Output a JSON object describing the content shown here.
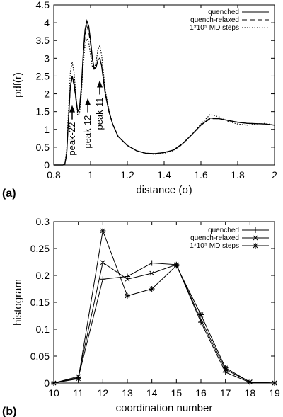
{
  "chart_data": [
    {
      "panel_label": "(a)",
      "type": "line",
      "xlabel": "distance (σ)",
      "ylabel": "pdf(r)",
      "xlim": [
        0.8,
        2.0
      ],
      "ylim": [
        0,
        4.5
      ],
      "xticks": [
        "0.8",
        "1",
        "1.2",
        "1.4",
        "1.6",
        "1.8",
        "2"
      ],
      "yticks": [
        "0",
        "0.5",
        "1",
        "1.5",
        "2",
        "2.5",
        "3",
        "3.5",
        "4",
        "4.5"
      ],
      "legend_position": "top-right",
      "series": [
        {
          "name": "quenched",
          "style": "solid",
          "points": [
            [
              0.8,
              0
            ],
            [
              0.85,
              0
            ],
            [
              0.86,
              0.02
            ],
            [
              0.87,
              0.3
            ],
            [
              0.88,
              1.3
            ],
            [
              0.89,
              2.2
            ],
            [
              0.9,
              2.5
            ],
            [
              0.91,
              2.3
            ],
            [
              0.92,
              1.9
            ],
            [
              0.93,
              1.5
            ],
            [
              0.94,
              1.6
            ],
            [
              0.95,
              2.2
            ],
            [
              0.96,
              3.1
            ],
            [
              0.97,
              3.8
            ],
            [
              0.98,
              4.05
            ],
            [
              0.99,
              3.9
            ],
            [
              1.0,
              3.5
            ],
            [
              1.01,
              3.0
            ],
            [
              1.02,
              2.7
            ],
            [
              1.03,
              2.75
            ],
            [
              1.04,
              2.95
            ],
            [
              1.05,
              3.0
            ],
            [
              1.06,
              2.8
            ],
            [
              1.07,
              2.4
            ],
            [
              1.08,
              2.0
            ],
            [
              1.1,
              1.5
            ],
            [
              1.12,
              1.15
            ],
            [
              1.15,
              0.8
            ],
            [
              1.2,
              0.55
            ],
            [
              1.25,
              0.4
            ],
            [
              1.3,
              0.33
            ],
            [
              1.35,
              0.32
            ],
            [
              1.4,
              0.35
            ],
            [
              1.45,
              0.42
            ],
            [
              1.5,
              0.6
            ],
            [
              1.55,
              0.85
            ],
            [
              1.6,
              1.12
            ],
            [
              1.65,
              1.32
            ],
            [
              1.7,
              1.3
            ],
            [
              1.75,
              1.25
            ],
            [
              1.8,
              1.2
            ],
            [
              1.85,
              1.17
            ],
            [
              1.9,
              1.16
            ],
            [
              1.95,
              1.15
            ],
            [
              2.0,
              1.12
            ]
          ]
        },
        {
          "name": "quench-relaxed",
          "style": "dashed",
          "points": [
            [
              0.8,
              0
            ],
            [
              0.85,
              0
            ],
            [
              0.86,
              0.02
            ],
            [
              0.87,
              0.3
            ],
            [
              0.88,
              1.25
            ],
            [
              0.89,
              2.15
            ],
            [
              0.9,
              2.45
            ],
            [
              0.91,
              2.25
            ],
            [
              0.92,
              1.85
            ],
            [
              0.93,
              1.5
            ],
            [
              0.94,
              1.6
            ],
            [
              0.95,
              2.2
            ],
            [
              0.96,
              3.0
            ],
            [
              0.97,
              3.65
            ],
            [
              0.98,
              3.9
            ],
            [
              0.99,
              3.75
            ],
            [
              1.0,
              3.4
            ],
            [
              1.01,
              2.95
            ],
            [
              1.02,
              2.7
            ],
            [
              1.03,
              2.75
            ],
            [
              1.04,
              2.95
            ],
            [
              1.05,
              3.0
            ],
            [
              1.06,
              2.8
            ],
            [
              1.07,
              2.4
            ],
            [
              1.08,
              2.0
            ],
            [
              1.1,
              1.5
            ],
            [
              1.12,
              1.15
            ],
            [
              1.15,
              0.8
            ],
            [
              1.2,
              0.55
            ],
            [
              1.25,
              0.4
            ],
            [
              1.3,
              0.33
            ],
            [
              1.35,
              0.32
            ],
            [
              1.4,
              0.35
            ],
            [
              1.45,
              0.42
            ],
            [
              1.5,
              0.6
            ],
            [
              1.55,
              0.85
            ],
            [
              1.6,
              1.12
            ],
            [
              1.65,
              1.3
            ],
            [
              1.7,
              1.3
            ],
            [
              1.75,
              1.25
            ],
            [
              1.8,
              1.2
            ],
            [
              1.85,
              1.17
            ],
            [
              1.9,
              1.16
            ],
            [
              1.95,
              1.15
            ],
            [
              2.0,
              1.12
            ]
          ]
        },
        {
          "name": "1*10⁵ MD steps",
          "style": "dotted",
          "points": [
            [
              0.8,
              0
            ],
            [
              0.85,
              0
            ],
            [
              0.86,
              0.03
            ],
            [
              0.87,
              0.4
            ],
            [
              0.88,
              1.6
            ],
            [
              0.89,
              2.6
            ],
            [
              0.9,
              2.9
            ],
            [
              0.91,
              2.6
            ],
            [
              0.92,
              2.0
            ],
            [
              0.93,
              1.4
            ],
            [
              0.94,
              1.45
            ],
            [
              0.95,
              2.0
            ],
            [
              0.96,
              2.8
            ],
            [
              0.97,
              3.35
            ],
            [
              0.98,
              3.55
            ],
            [
              0.99,
              3.45
            ],
            [
              1.0,
              3.1
            ],
            [
              1.01,
              2.75
            ],
            [
              1.02,
              2.7
            ],
            [
              1.03,
              2.9
            ],
            [
              1.04,
              3.25
            ],
            [
              1.05,
              3.35
            ],
            [
              1.06,
              3.1
            ],
            [
              1.07,
              2.6
            ],
            [
              1.08,
              2.1
            ],
            [
              1.1,
              1.55
            ],
            [
              1.12,
              1.15
            ],
            [
              1.15,
              0.8
            ],
            [
              1.2,
              0.55
            ],
            [
              1.25,
              0.4
            ],
            [
              1.3,
              0.32
            ],
            [
              1.35,
              0.3
            ],
            [
              1.4,
              0.33
            ],
            [
              1.45,
              0.4
            ],
            [
              1.5,
              0.58
            ],
            [
              1.55,
              0.85
            ],
            [
              1.6,
              1.15
            ],
            [
              1.65,
              1.42
            ],
            [
              1.7,
              1.35
            ],
            [
              1.75,
              1.22
            ],
            [
              1.8,
              1.15
            ],
            [
              1.85,
              1.12
            ],
            [
              1.9,
              1.15
            ],
            [
              1.95,
              1.17
            ],
            [
              2.0,
              1.12
            ]
          ]
        }
      ],
      "annotations": [
        {
          "text": "peak-22",
          "x": 0.9,
          "y_arrow": 1.6
        },
        {
          "text": "peak-12",
          "x": 0.985,
          "y_arrow": 1.8
        },
        {
          "text": "peak-11",
          "x": 1.05,
          "y_arrow": 2.3
        }
      ]
    },
    {
      "panel_label": "(b)",
      "type": "line",
      "xlabel": "coordination number",
      "ylabel": "histogram",
      "xlim": [
        10,
        19
      ],
      "ylim": [
        0,
        0.3
      ],
      "xticks": [
        "10",
        "11",
        "12",
        "13",
        "14",
        "15",
        "16",
        "17",
        "18",
        "19"
      ],
      "yticks": [
        "0",
        "0.05",
        "0.1",
        "0.15",
        "0.2",
        "0.25",
        "0.3"
      ],
      "legend_position": "top-right",
      "x": [
        10,
        11,
        12,
        13,
        14,
        15,
        16,
        17,
        18,
        19
      ],
      "series": [
        {
          "name": "quenched",
          "marker": "plus",
          "values": [
            0,
            0.01,
            0.193,
            0.198,
            0.223,
            0.22,
            0.113,
            0.02,
            0.001,
            0
          ]
        },
        {
          "name": "quench-relaxed",
          "marker": "x",
          "values": [
            0,
            0.012,
            0.224,
            0.193,
            0.204,
            0.22,
            0.118,
            0.025,
            0.002,
            0
          ]
        },
        {
          "name": "1*10⁵ MD steps",
          "marker": "star",
          "values": [
            0,
            0.008,
            0.283,
            0.162,
            0.175,
            0.218,
            0.127,
            0.028,
            0.002,
            0
          ]
        }
      ]
    }
  ]
}
